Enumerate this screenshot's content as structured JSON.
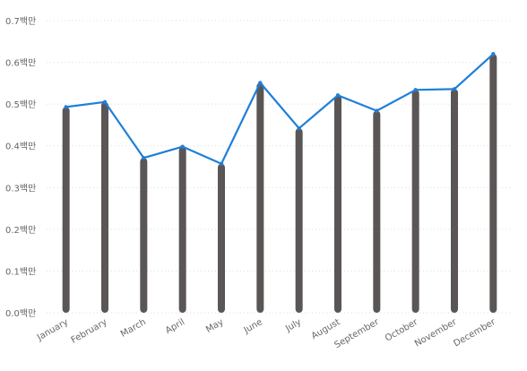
{
  "chart_data": {
    "type": "bar",
    "categories": [
      "January",
      "February",
      "March",
      "April",
      "May",
      "June",
      "July",
      "August",
      "September",
      "October",
      "November",
      "December"
    ],
    "series": [
      {
        "type": "bar",
        "values": [
          493000,
          505000,
          371000,
          398000,
          357000,
          551000,
          442000,
          521000,
          484000,
          534000,
          536000,
          620000
        ],
        "color": "#5a5655"
      },
      {
        "type": "line",
        "values": [
          493000,
          505000,
          371000,
          398000,
          357000,
          551000,
          442000,
          521000,
          484000,
          534000,
          536000,
          620000
        ],
        "color": "#1f7fd8"
      }
    ],
    "y_ticks": [
      {
        "value": 0,
        "label": "0.0백만"
      },
      {
        "value": 100000,
        "label": "0.1백만"
      },
      {
        "value": 200000,
        "label": "0.2백만"
      },
      {
        "value": 300000,
        "label": "0.3백만"
      },
      {
        "value": 400000,
        "label": "0.4백만"
      },
      {
        "value": 500000,
        "label": "0.5백만"
      },
      {
        "value": 600000,
        "label": "0.6백만"
      },
      {
        "value": 700000,
        "label": "0.7백만"
      }
    ],
    "ylim": [
      0,
      700000
    ],
    "grid": true,
    "legend": "none",
    "title": "",
    "xlabel": "",
    "ylabel": ""
  }
}
